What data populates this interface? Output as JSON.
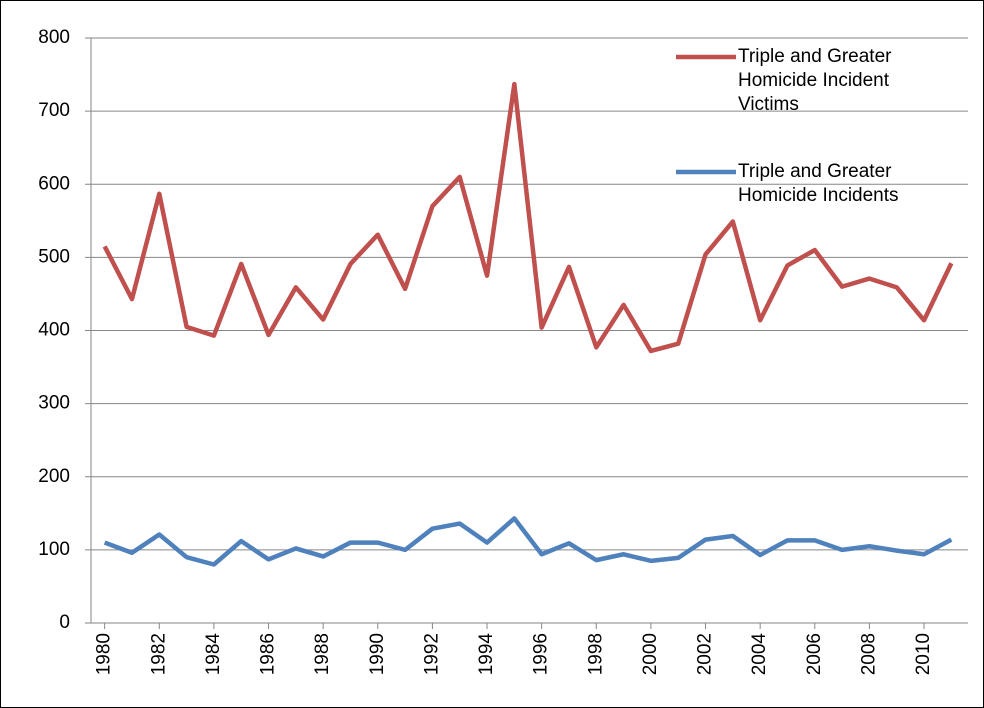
{
  "chart_data": {
    "type": "line",
    "x": [
      1980,
      1981,
      1982,
      1983,
      1984,
      1985,
      1986,
      1987,
      1988,
      1989,
      1990,
      1991,
      1992,
      1993,
      1994,
      1995,
      1996,
      1997,
      1998,
      1999,
      2000,
      2001,
      2002,
      2003,
      2004,
      2005,
      2006,
      2007,
      2008,
      2009,
      2010,
      2011
    ],
    "xlim": [
      1979.5,
      2011.5
    ],
    "xticks": [
      1980,
      1982,
      1984,
      1986,
      1988,
      1990,
      1992,
      1994,
      1996,
      1998,
      2000,
      2002,
      2004,
      2006,
      2008,
      2010
    ],
    "ylim": [
      0,
      800
    ],
    "yticks": [
      0,
      100,
      200,
      300,
      400,
      500,
      600,
      700,
      800
    ],
    "grid": true,
    "legend": "top-right",
    "series": [
      {
        "name": "Triple and Greater Homicide Incident Victims",
        "color": "#c0504d",
        "values": [
          515,
          443,
          587,
          405,
          393,
          491,
          394,
          459,
          415,
          491,
          531,
          457,
          570,
          610,
          475,
          737,
          404,
          487,
          377,
          435,
          372,
          382,
          504,
          549,
          414,
          489,
          510,
          460,
          471,
          459,
          414,
          492
        ]
      },
      {
        "name": "Triple and Greater Homicide Incidents",
        "color": "#4f81bd",
        "values": [
          110,
          96,
          121,
          90,
          80,
          112,
          87,
          102,
          91,
          110,
          110,
          100,
          129,
          136,
          110,
          143,
          94,
          109,
          86,
          94,
          85,
          89,
          114,
          119,
          93,
          113,
          113,
          100,
          105,
          99,
          94,
          114
        ]
      }
    ]
  }
}
